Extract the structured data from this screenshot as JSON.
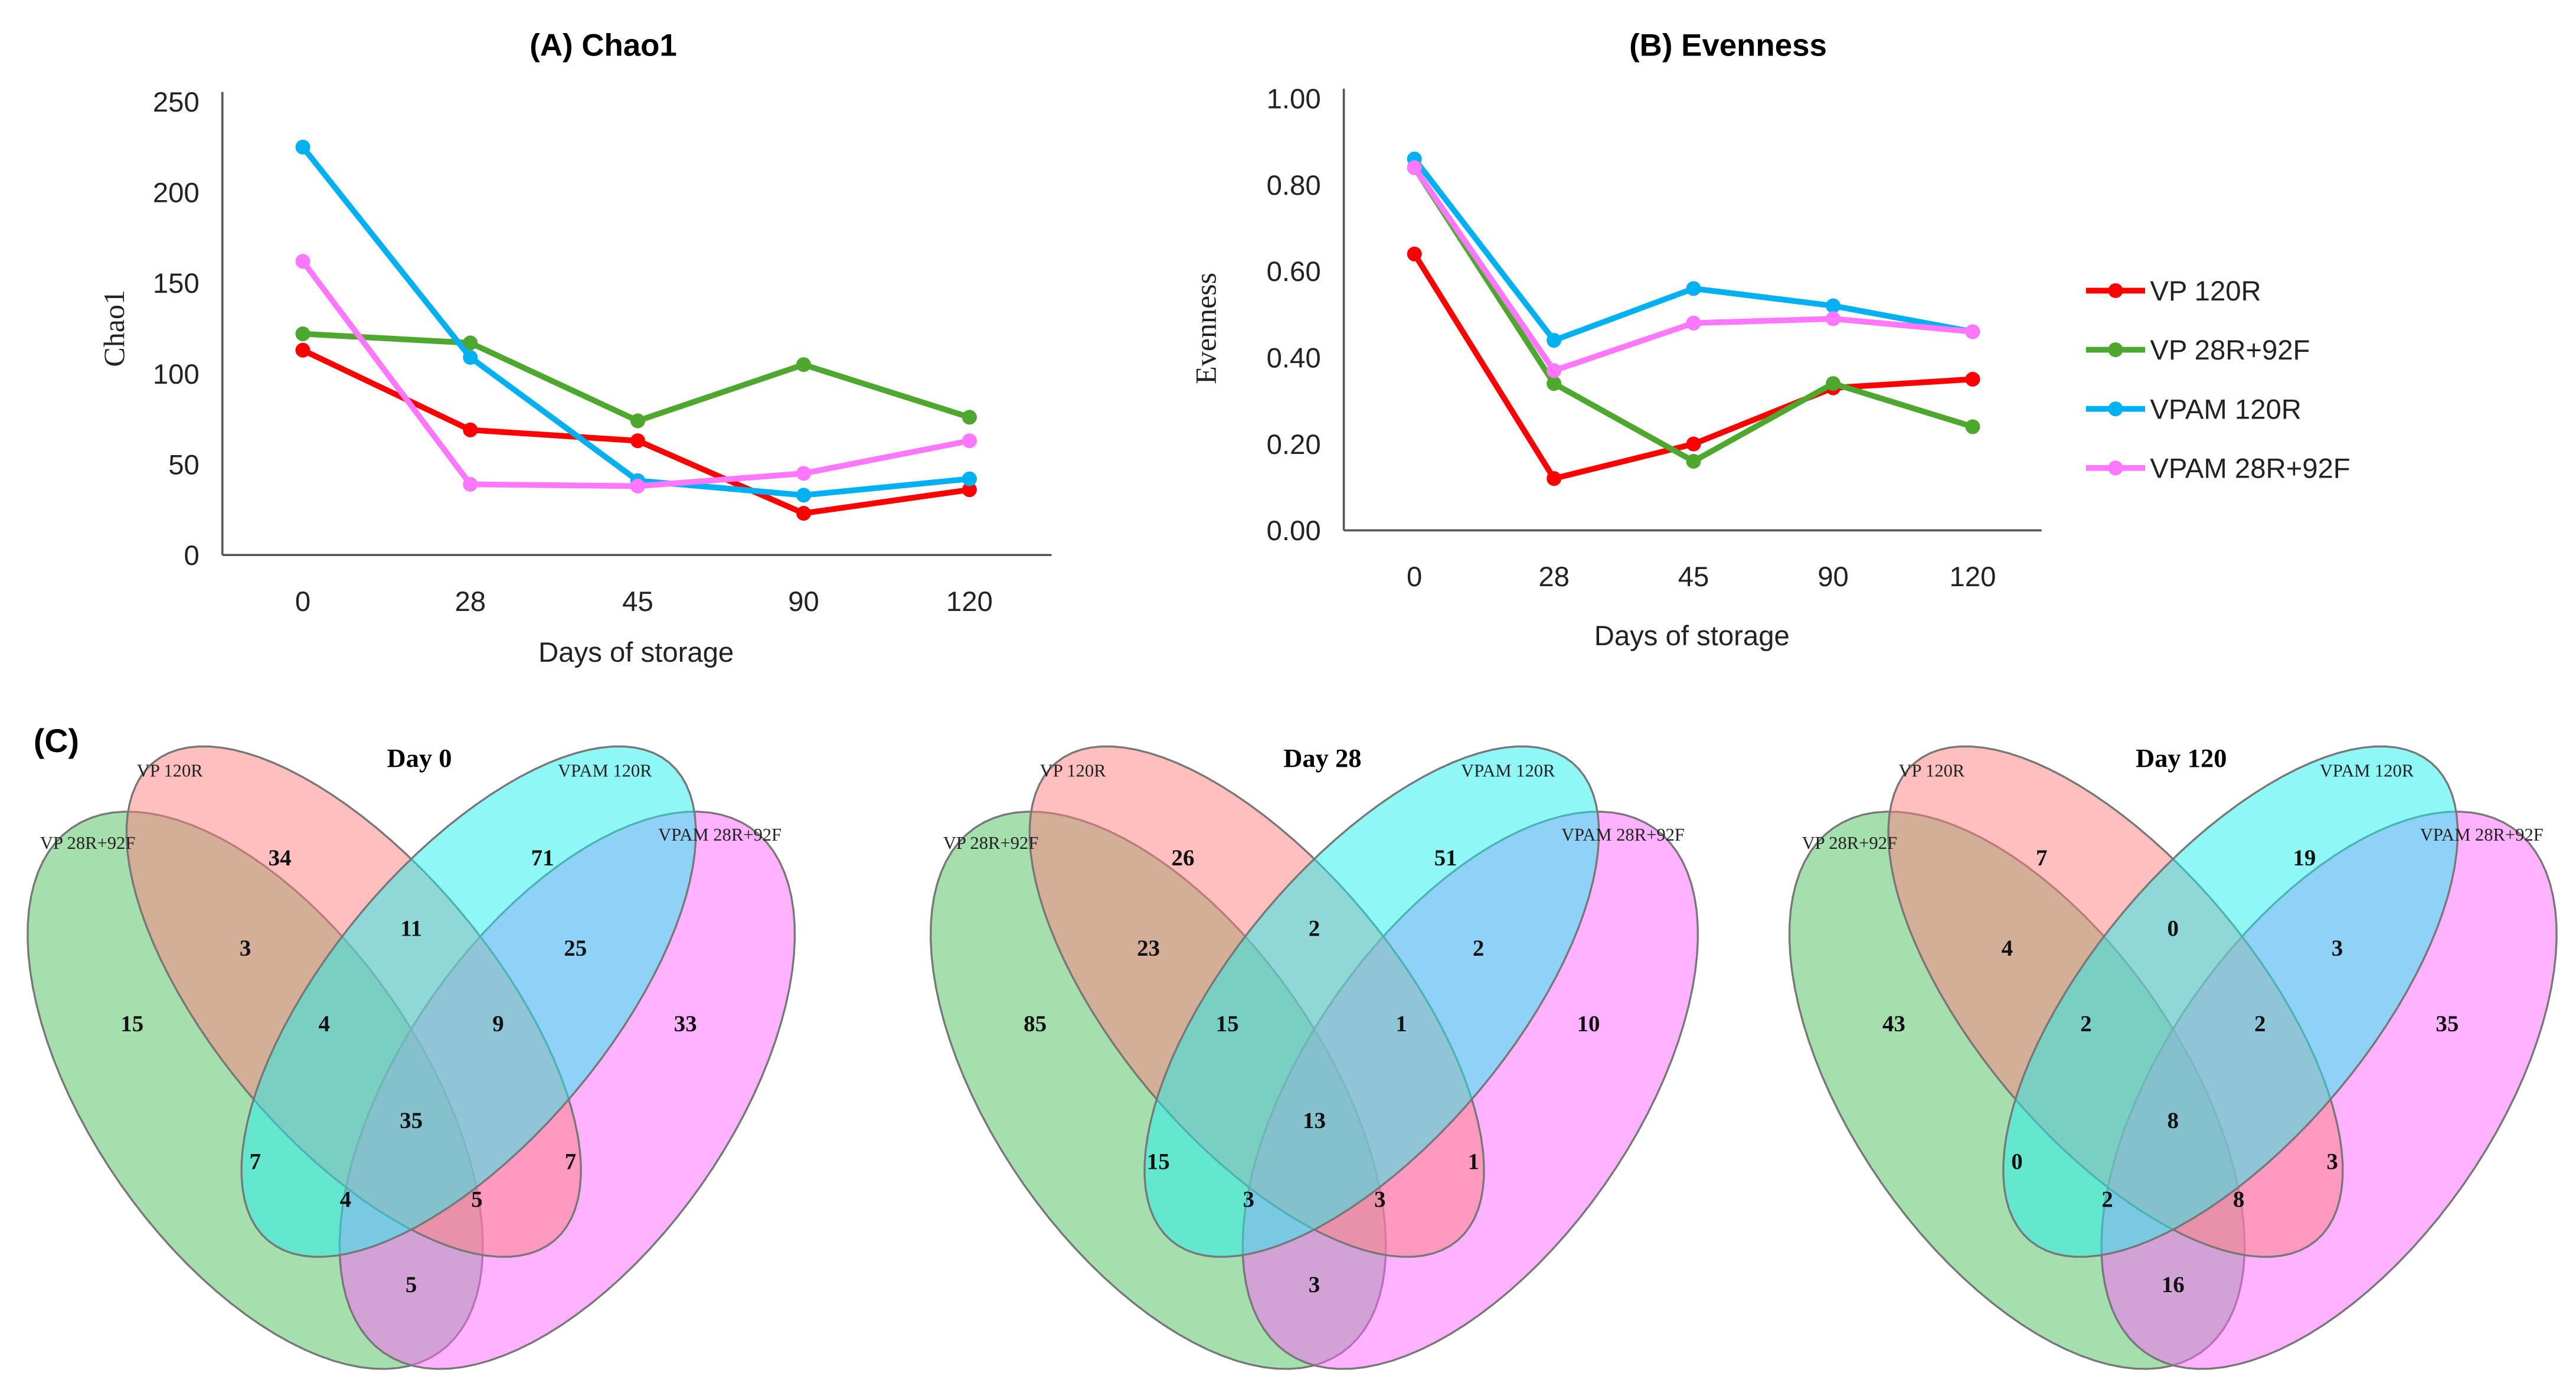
{
  "chart_data": [
    {
      "type": "line",
      "title": "(A) Chao1",
      "xlabel": "Days of storage",
      "ylabel": "Chao1",
      "categories": [
        "0",
        "28",
        "45",
        "90",
        "120"
      ],
      "ylim": [
        0,
        250
      ],
      "yticks": [
        "0",
        "50",
        "100",
        "150",
        "200",
        "250"
      ],
      "grid": false,
      "series": [
        {
          "name": "VP 120R",
          "color": "#ff0000",
          "values": [
            113,
            69,
            63,
            23,
            36
          ]
        },
        {
          "name": "VP 28R+92F",
          "color": "#4ea72e",
          "values": [
            122,
            117,
            74,
            105,
            76
          ]
        },
        {
          "name": "VPAM 120R",
          "color": "#00b0f0",
          "values": [
            225,
            109,
            41,
            33,
            42
          ]
        },
        {
          "name": "VPAM 28R+92F",
          "color": "#ff77ff",
          "values": [
            162,
            39,
            38,
            45,
            63
          ]
        }
      ]
    },
    {
      "type": "line",
      "title": "(B) Evenness",
      "xlabel": "Days of storage",
      "ylabel": "Evenness",
      "categories": [
        "0",
        "28",
        "45",
        "90",
        "120"
      ],
      "ylim": [
        0,
        1
      ],
      "yticks": [
        "0.00",
        "0.20",
        "0.40",
        "0.60",
        "0.80",
        "1.00"
      ],
      "grid": false,
      "legend": {
        "placement": "right",
        "entries": [
          "VP 120R",
          "VP 28R+92F",
          "VPAM 120R",
          "VPAM 28R+92F"
        ]
      },
      "series": [
        {
          "name": "VP 120R",
          "color": "#ff0000",
          "values": [
            0.64,
            0.12,
            0.2,
            0.33,
            0.35
          ]
        },
        {
          "name": "VP 28R+92F",
          "color": "#4ea72e",
          "values": [
            0.84,
            0.34,
            0.16,
            0.34,
            0.24
          ]
        },
        {
          "name": "VPAM 120R",
          "color": "#00b0f0",
          "values": [
            0.86,
            0.44,
            0.56,
            0.52,
            0.46
          ]
        },
        {
          "name": "VPAM 28R+92F",
          "color": "#ff77ff",
          "values": [
            0.84,
            0.37,
            0.48,
            0.49,
            0.46
          ]
        }
      ]
    },
    {
      "type": "venn",
      "panel_label": "(C)",
      "sets": [
        "VP 120R",
        "VPAM 120R",
        "VP 28R+92F",
        "VPAM 28R+92F"
      ],
      "set_colors": [
        "#ff7f7f",
        "#22f0f0",
        "#4cbf5c",
        "#ff66ff"
      ],
      "region_order": [
        "VP120R only",
        "VPAM120R only",
        "VP28R+92F only",
        "VPAM28R+92F only",
        "VP28R+92F & VP120R",
        "VP120R & VPAM120R",
        "VPAM120R & VPAM28R+92F",
        "VP28R+92F & VP120R & VPAM120R",
        "VP120R & VPAM120R & VPAM28R+92F",
        "all four",
        "VP28R+92F & VPAM120R",
        "VP120R & VPAM28R+92F",
        "VP28R+92F & VPAM120R & VPAM28R+92F",
        "VP28R+92F & VP120R & VPAM28R+92F",
        "VP28R+92F & VPAM28R+92F"
      ],
      "diagrams": [
        {
          "title": "Day 0",
          "values": [
            "34",
            "71",
            "15",
            "33",
            "3",
            "11",
            "25",
            "4",
            "9",
            "35",
            "7",
            "7",
            "4",
            "5",
            "5"
          ]
        },
        {
          "title": "Day 28",
          "values": [
            "26",
            "51",
            "85",
            "10",
            "23",
            "2",
            "2",
            "15",
            "1",
            "13",
            "15",
            "1",
            "3",
            "3",
            "3"
          ]
        },
        {
          "title": "Day 120",
          "values": [
            "7",
            "19",
            "43",
            "35",
            "4",
            "0",
            "3",
            "2",
            "2",
            "8",
            "0",
            "3",
            "2",
            "8",
            "16"
          ]
        }
      ]
    }
  ]
}
